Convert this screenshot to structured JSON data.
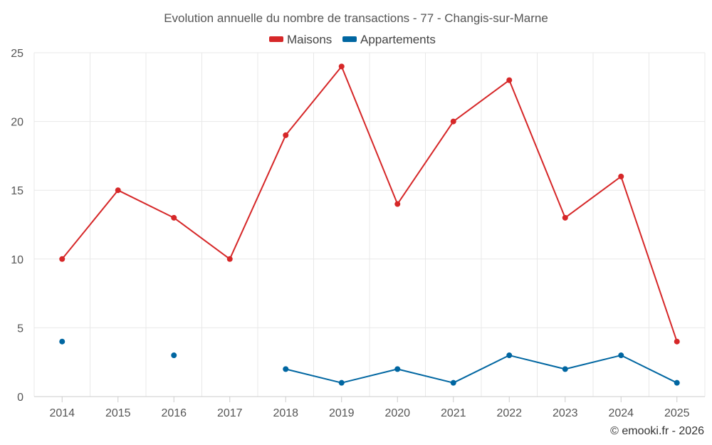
{
  "chart_data": {
    "type": "line",
    "title": "Evolution annuelle du nombre de transactions - 77 - Changis-sur-Marne",
    "xlabel": "",
    "ylabel": "",
    "categories": [
      "2014",
      "2015",
      "2016",
      "2017",
      "2018",
      "2019",
      "2020",
      "2021",
      "2022",
      "2023",
      "2024",
      "2025"
    ],
    "ylim": [
      0,
      25
    ],
    "yticks": [
      0,
      5,
      10,
      15,
      20,
      25
    ],
    "grid": true,
    "legend_position": "top-center",
    "series": [
      {
        "name": "Maisons",
        "color": "#d62728",
        "values": [
          10,
          15,
          13,
          10,
          19,
          24,
          14,
          20,
          23,
          13,
          16,
          4
        ]
      },
      {
        "name": "Appartements",
        "color": "#0066a1",
        "values": [
          4,
          null,
          3,
          null,
          2,
          1,
          2,
          1,
          3,
          2,
          3,
          1
        ]
      }
    ],
    "credit": "© emooki.fr - 2026"
  }
}
